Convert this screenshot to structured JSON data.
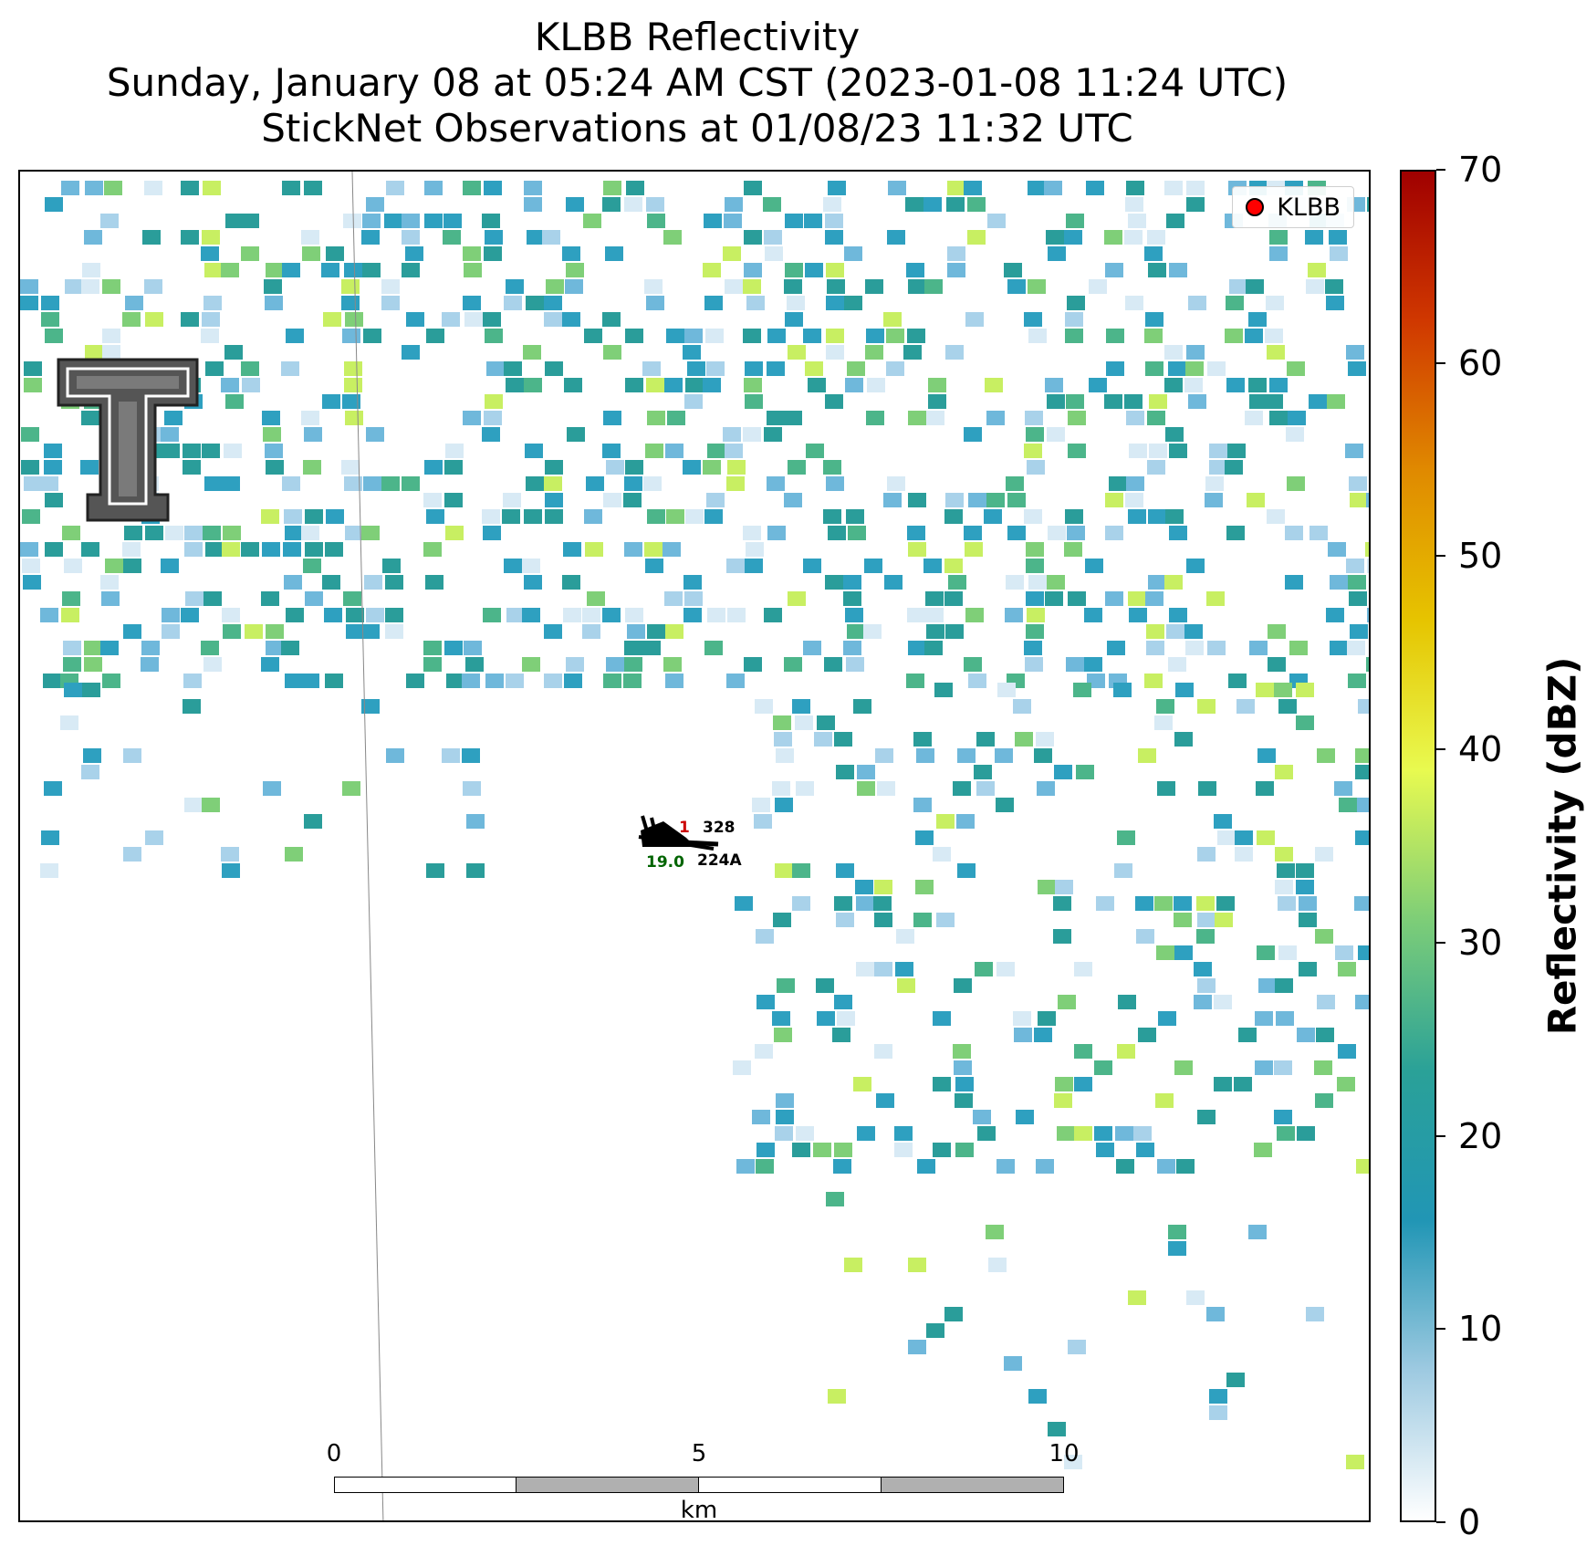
{
  "title": {
    "line1": "KLBB Reflectivity",
    "line2": "Sunday, January 08 at 05:24 AM CST (2023-01-08 11:24 UTC)",
    "line3": "StickNet Observations at 01/08/23 11:32 UTC"
  },
  "legend": {
    "label": "KLBB",
    "marker_color": "#ff0000"
  },
  "scalebar": {
    "ticks": [
      "0",
      "5",
      "10"
    ],
    "unit": "km"
  },
  "colorbar": {
    "label": "Reflectivity (dBZ)",
    "ticks": [
      "0",
      "10",
      "20",
      "30",
      "40",
      "50",
      "60",
      "70"
    ],
    "range": [
      0,
      70
    ],
    "colors": [
      "#ffffff",
      "#9ecae1",
      "#2196b5",
      "#2aa198",
      "#7ccd78",
      "#e8fa50",
      "#e6c400",
      "#e08a00",
      "#d03800",
      "#a00000"
    ]
  },
  "stations": {
    "temp_label": "1",
    "temp_color": "#cc0000",
    "dew_label": "19.0",
    "dew_color": "#006400",
    "ids": [
      "328",
      "224A"
    ]
  },
  "logo": {
    "name": "Texas Tech double-T",
    "icon": "texas-tech-logo-icon"
  }
}
